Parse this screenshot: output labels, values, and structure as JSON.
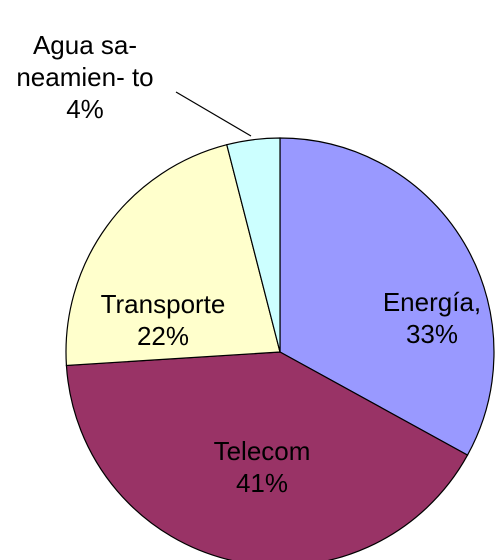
{
  "chart_data": {
    "type": "pie",
    "categories": [
      "Energía,",
      "Telecom",
      "Transporte",
      "Agua sa- neamien- to"
    ],
    "values": [
      33,
      41,
      22,
      4
    ],
    "value_labels": [
      "33%",
      "41%",
      "22%",
      "4%"
    ],
    "colors": [
      "#9999ff",
      "#993366",
      "#ffffcc",
      "#ccffff"
    ]
  }
}
